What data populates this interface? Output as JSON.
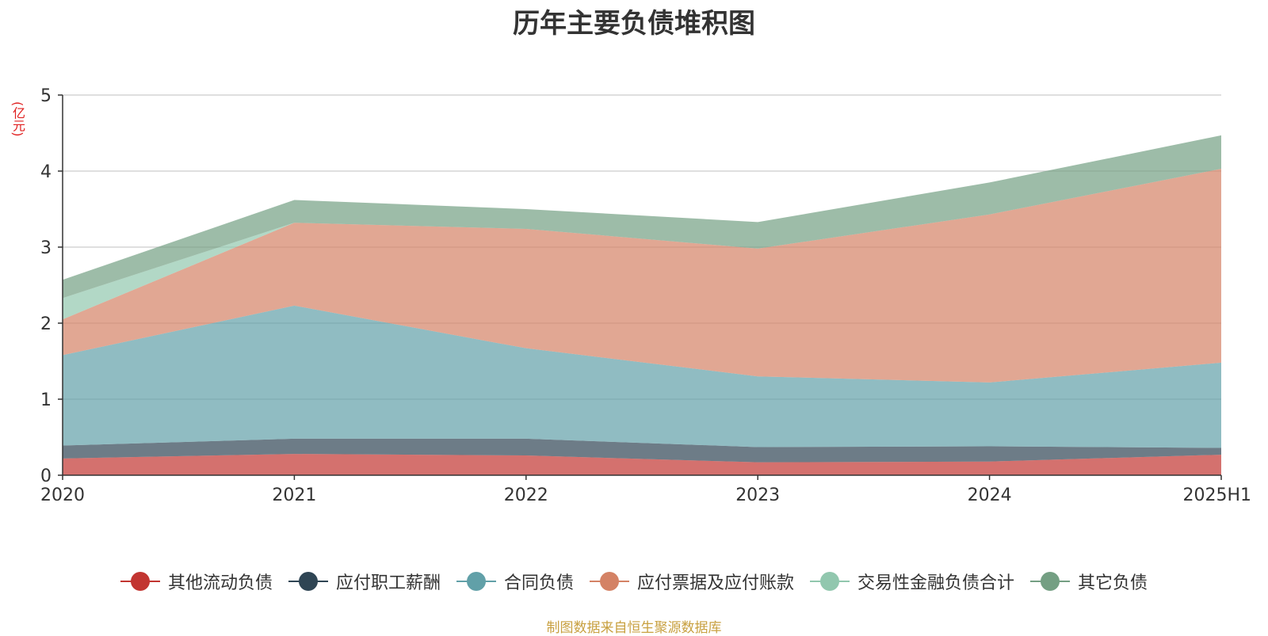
{
  "chart_data": {
    "type": "area",
    "stacked": true,
    "title": "历年主要负债堆积图",
    "ylabel": "(亿元)",
    "categories": [
      "2020",
      "2021",
      "2022",
      "2023",
      "2024",
      "2025H1"
    ],
    "ylim": [
      0,
      5
    ],
    "yticks": [
      0,
      1,
      2,
      3,
      4,
      5
    ],
    "grid": true,
    "legend_position": "bottom",
    "series": [
      {
        "name": "其他流动负债",
        "color": "#c23531",
        "values": [
          0.22,
          0.28,
          0.26,
          0.17,
          0.18,
          0.27
        ]
      },
      {
        "name": "应付职工薪酬",
        "color": "#2f4554",
        "values": [
          0.17,
          0.2,
          0.22,
          0.2,
          0.2,
          0.09
        ]
      },
      {
        "name": "合同负债",
        "color": "#61a0a8",
        "values": [
          1.19,
          1.75,
          1.19,
          0.93,
          0.84,
          1.12
        ]
      },
      {
        "name": "应付票据及应付账款",
        "color": "#d48265",
        "values": [
          0.47,
          1.09,
          1.57,
          1.68,
          2.21,
          2.55
        ]
      },
      {
        "name": "交易性金融负债合计",
        "color": "#91c7ae",
        "values": [
          0.28,
          0.0,
          0.0,
          0.0,
          0.0,
          0.0
        ]
      },
      {
        "name": "其它负债",
        "color": "#749f83",
        "values": [
          0.24,
          0.3,
          0.26,
          0.35,
          0.42,
          0.44
        ]
      }
    ]
  },
  "source_note": "制图数据来自恒生聚源数据库"
}
